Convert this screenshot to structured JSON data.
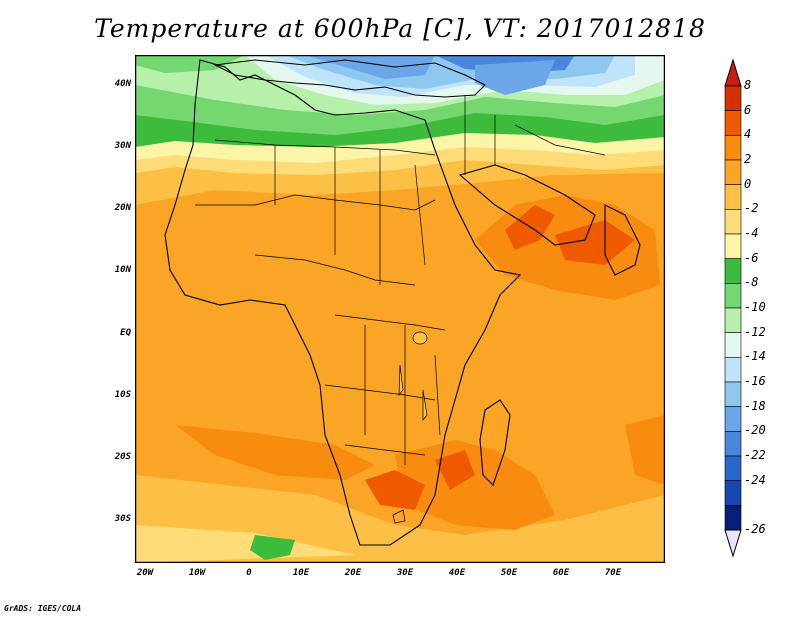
{
  "title": "Temperature at 600hPa [C], VT: 2017012818",
  "credit": "GrADS: IGES/COLA",
  "lat_labels": [
    "40N",
    "30N",
    "20N",
    "10N",
    "EQ",
    "10S",
    "20S",
    "30S"
  ],
  "lon_labels": [
    "20W",
    "10W",
    "0",
    "10E",
    "20E",
    "30E",
    "40E",
    "50E",
    "60E",
    "70E"
  ],
  "colorbar": {
    "labels": [
      "8",
      "6",
      "4",
      "2",
      "0",
      "-2",
      "-4",
      "-6",
      "-8",
      "-10",
      "-12",
      "-14",
      "-16",
      "-18",
      "-20",
      "-22",
      "-24",
      "-26"
    ],
    "colors": [
      "#d62f00",
      "#ef5a00",
      "#f78c10",
      "#fba526",
      "#fdc046",
      "#fedd78",
      "#fcf5a8",
      "#3cbb3c",
      "#74d770",
      "#b6f0aa",
      "#e4f8f0",
      "#bfe3fa",
      "#8ec7f0",
      "#6aa6e8",
      "#4a86dc",
      "#2a66cc",
      "#1646b0",
      "#0a1c7a"
    ],
    "over_color": "#c81e10",
    "under_color": "#e8e4fc"
  },
  "map": {
    "projection": "lat-lon",
    "lon_range": [
      -22,
      80
    ],
    "lat_range": [
      -37,
      45
    ],
    "field": "temperature_600hPa",
    "units": "C"
  }
}
